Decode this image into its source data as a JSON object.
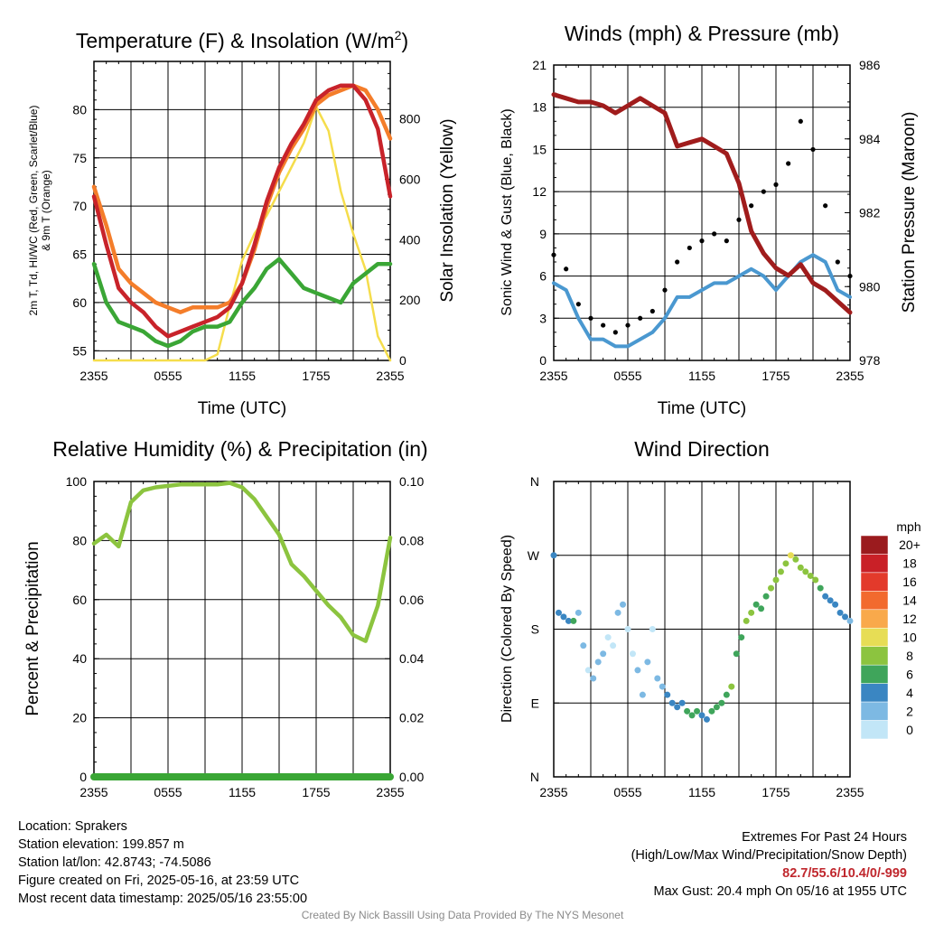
{
  "chart_data": [
    {
      "type": "line",
      "title": "Temperature (F) & Insolation (W/m²)",
      "title_text": "Temperature (F) & Insolation (W/m",
      "title_sup": "2",
      "title_end": ")",
      "xlabel": "Time (UTC)",
      "ylabel_line1": "2m T, Td, HI/WC (Red, Green, Scarlet/Blue)",
      "ylabel_line2": "& 9m T (Orange)",
      "y2label": "Solar Insolation (Yellow)",
      "x_ticks": [
        "2355",
        "0555",
        "1155",
        "1755",
        "2355"
      ],
      "y_ticks": [
        55,
        60,
        65,
        70,
        75,
        80
      ],
      "ylim": [
        54,
        85
      ],
      "y2_ticks": [
        0,
        200,
        400,
        600,
        800
      ],
      "y2lim": [
        0,
        990
      ],
      "series": [
        {
          "name": "2m T",
          "color": "#c8232a",
          "x": [
            0,
            1,
            2,
            3,
            4,
            5,
            6,
            7,
            8,
            9,
            10,
            11,
            12,
            13,
            14,
            15,
            16,
            17,
            18,
            19,
            20,
            21,
            22,
            23,
            24
          ],
          "values": [
            71,
            66,
            61.5,
            60,
            59,
            57.5,
            56.5,
            57,
            57.5,
            58,
            58.5,
            59.5,
            62,
            66,
            70.5,
            74,
            76.5,
            78.5,
            81,
            82,
            82.5,
            82.5,
            81,
            78,
            71
          ]
        },
        {
          "name": "Td",
          "color": "#3aa635",
          "x": [
            0,
            1,
            2,
            3,
            4,
            5,
            6,
            7,
            8,
            9,
            10,
            11,
            12,
            13,
            14,
            15,
            16,
            17,
            18,
            19,
            20,
            21,
            22,
            23,
            24
          ],
          "values": [
            64,
            60,
            58,
            57.5,
            57,
            56,
            55.5,
            56,
            57,
            57.5,
            57.5,
            58,
            60,
            61.5,
            63.5,
            64.5,
            63,
            61.5,
            61,
            60.5,
            60,
            62,
            63,
            64,
            64
          ]
        },
        {
          "name": "9m T",
          "color": "#f47d2a",
          "x": [
            0,
            1,
            2,
            3,
            4,
            5,
            6,
            7,
            8,
            9,
            10,
            11,
            12,
            13,
            14,
            15,
            16,
            17,
            18,
            19,
            20,
            21,
            22,
            23,
            24
          ],
          "values": [
            72,
            68,
            63.5,
            62,
            61,
            60,
            59.5,
            59,
            59.5,
            59.5,
            59.5,
            60,
            62,
            65.5,
            70,
            73.5,
            76,
            78,
            80.5,
            81.5,
            82,
            82.5,
            82,
            80,
            77
          ]
        },
        {
          "name": "Solar Insolation",
          "axis": "y2",
          "color": "#f5dd4c",
          "x": [
            0,
            1,
            2,
            3,
            4,
            5,
            6,
            7,
            8,
            9,
            10,
            11,
            12,
            13,
            14,
            15,
            16,
            17,
            18,
            19,
            20,
            21,
            22,
            23,
            24
          ],
          "values": [
            0,
            0,
            0,
            0,
            0,
            0,
            0,
            0,
            0,
            0,
            20,
            180,
            330,
            420,
            480,
            560,
            640,
            720,
            840,
            760,
            560,
            420,
            300,
            80,
            0
          ]
        }
      ]
    },
    {
      "type": "line",
      "title": "Winds (mph) & Pressure (mb)",
      "xlabel": "Time (UTC)",
      "ylabel": "Sonic Wind & Gust (Blue, Black)",
      "y2label": "Station Pressure (Maroon)",
      "x_ticks": [
        "2355",
        "0555",
        "1155",
        "1755",
        "2355"
      ],
      "y_ticks": [
        0,
        3,
        6,
        9,
        12,
        15,
        18,
        21
      ],
      "ylim": [
        0,
        21
      ],
      "y2_ticks": [
        978,
        980,
        982,
        984,
        986
      ],
      "y2lim": [
        978,
        986
      ],
      "series": [
        {
          "name": "Sonic Wind",
          "color": "#4a98d0",
          "x": [
            0,
            1,
            2,
            3,
            4,
            5,
            6,
            7,
            8,
            9,
            10,
            11,
            12,
            13,
            14,
            15,
            16,
            17,
            18,
            19,
            20,
            21,
            22,
            23,
            24
          ],
          "values": [
            5.5,
            5,
            3,
            1.5,
            1.5,
            1,
            1,
            1.5,
            2,
            3,
            4.5,
            4.5,
            5,
            5.5,
            5.5,
            6,
            6.5,
            6,
            5,
            6,
            7,
            7.5,
            7,
            5,
            4.5
          ]
        },
        {
          "name": "Gust",
          "color": "#000000",
          "x": [
            0,
            1,
            2,
            3,
            4,
            5,
            6,
            7,
            8,
            9,
            10,
            11,
            12,
            13,
            14,
            15,
            16,
            17,
            18,
            19,
            20,
            21,
            22,
            23,
            24
          ],
          "values": [
            7.5,
            6.5,
            4,
            3,
            2.5,
            2,
            2.5,
            3,
            3.5,
            5,
            7,
            8,
            8.5,
            9,
            8.5,
            10,
            11,
            12,
            12.5,
            14,
            17,
            15,
            11,
            7,
            6
          ]
        },
        {
          "name": "Station Pressure",
          "axis": "y2",
          "color": "#a01c1c",
          "x": [
            0,
            1,
            2,
            3,
            4,
            5,
            6,
            7,
            8,
            9,
            10,
            11,
            12,
            13,
            14,
            15,
            16,
            17,
            18,
            19,
            20,
            21,
            22,
            23,
            24
          ],
          "values": [
            985.2,
            985.1,
            985,
            985,
            984.9,
            984.7,
            984.9,
            985.1,
            984.9,
            984.7,
            983.8,
            983.9,
            984,
            983.8,
            983.6,
            982.8,
            981.5,
            980.9,
            980.5,
            980.3,
            980.6,
            980.1,
            979.9,
            979.6,
            979.3
          ]
        }
      ]
    },
    {
      "type": "line",
      "title": "Relative Humidity (%) & Precipitation (in)",
      "ylabel": "Percent & Precipitation",
      "x_ticks": [
        "2355",
        "0555",
        "1155",
        "1755",
        "2355"
      ],
      "y_ticks": [
        0,
        20,
        40,
        60,
        80,
        100
      ],
      "ylim": [
        0,
        100
      ],
      "y2_ticks": [
        "0.00",
        "0.02",
        "0.04",
        "0.06",
        "0.08",
        "0.10"
      ],
      "y2lim": [
        0,
        0.1
      ],
      "series": [
        {
          "name": "Relative Humidity",
          "color": "#8cc43f",
          "x": [
            0,
            1,
            2,
            3,
            4,
            5,
            6,
            7,
            8,
            9,
            10,
            11,
            12,
            13,
            14,
            15,
            16,
            17,
            18,
            19,
            20,
            21,
            22,
            23,
            24
          ],
          "values": [
            79,
            82,
            78,
            93,
            97,
            98,
            98.5,
            99,
            99,
            99,
            99,
            99.5,
            98,
            94,
            88,
            82,
            72,
            68,
            63,
            58,
            54,
            48,
            46,
            58,
            81
          ]
        },
        {
          "name": "Precipitation",
          "axis": "y2",
          "color": "#3aa635",
          "x": [
            0,
            24
          ],
          "values": [
            0,
            0
          ]
        }
      ]
    },
    {
      "type": "scatter",
      "title": "Wind Direction",
      "ylabel": "Direction (Colored By Speed)",
      "x_ticks": [
        "2355",
        "0555",
        "1155",
        "1755",
        "2355"
      ],
      "y_ticks": [
        "N",
        "E",
        "S",
        "W",
        "N"
      ],
      "ylim": [
        0,
        360
      ],
      "colorbar": {
        "title": "mph",
        "labels": [
          "20+",
          "18",
          "16",
          "14",
          "12",
          "10",
          "8",
          "6",
          "4",
          "2",
          "0"
        ],
        "colors": [
          "#9b1b1e",
          "#c92027",
          "#e33a2b",
          "#f26a2e",
          "#f9a94b",
          "#e7dd55",
          "#8cc43f",
          "#3fa55b",
          "#3a86c2",
          "#7db9e3",
          "#c2e6f7"
        ]
      },
      "points": {
        "x": [
          0,
          0.4,
          0.8,
          1.2,
          1.6,
          2,
          2.4,
          2.8,
          3.2,
          3.6,
          4,
          4.4,
          4.8,
          5.2,
          5.6,
          6,
          6.4,
          6.8,
          7.2,
          7.6,
          8,
          8.4,
          8.8,
          9.2,
          9.6,
          10,
          10.4,
          10.8,
          11.2,
          11.6,
          12,
          12.4,
          12.8,
          13.2,
          13.6,
          14,
          14.4,
          14.8,
          15.2,
          15.6,
          16,
          16.4,
          16.8,
          17.2,
          17.6,
          18,
          18.4,
          18.8,
          19.2,
          19.6,
          20,
          20.4,
          20.8,
          21.2,
          21.6,
          22,
          22.4,
          22.8,
          23.2,
          23.6,
          24
        ],
        "y": [
          270,
          200,
          195,
          190,
          190,
          200,
          160,
          130,
          120,
          140,
          150,
          170,
          160,
          200,
          210,
          180,
          150,
          130,
          100,
          140,
          180,
          120,
          110,
          100,
          90,
          85,
          90,
          80,
          75,
          80,
          75,
          70,
          80,
          85,
          90,
          100,
          110,
          150,
          170,
          190,
          200,
          210,
          205,
          220,
          230,
          240,
          250,
          260,
          270,
          265,
          255,
          250,
          245,
          240,
          230,
          220,
          215,
          210,
          200,
          195,
          190
        ],
        "speed": [
          5,
          4,
          4,
          5,
          6,
          3,
          2,
          1,
          2,
          3,
          2,
          1,
          1,
          2,
          3,
          1,
          1,
          2,
          2,
          2,
          1,
          3,
          3,
          4,
          4,
          5,
          5,
          6,
          7,
          6,
          5,
          5,
          6,
          7,
          6,
          6,
          8,
          7,
          7,
          8,
          8,
          7,
          6,
          7,
          8,
          8,
          9,
          9,
          10,
          9,
          8,
          8,
          9,
          8,
          7,
          5,
          5,
          4,
          4,
          4,
          3
        ]
      }
    }
  ],
  "info": {
    "location": "Location: Sprakers",
    "elevation": "Station elevation: 199.857 m",
    "latlon": "Station lat/lon: 42.8743; -74.5086",
    "created": "Figure created on Fri, 2025-05-16, at 23:59 UTC",
    "recent": "Most recent data timestamp: 2025/05/16 23:55:00"
  },
  "extremes": {
    "title": "Extremes For Past 24 Hours",
    "subtitle": "(High/Low/Max Wind/Precipitation/Snow Depth)",
    "values": "82.7/55.6/10.4/0/-999",
    "gust": "Max Gust: 20.4 mph On 05/16 at 1955 UTC"
  },
  "credit": "Created By Nick Bassill Using Data Provided By The NYS Mesonet"
}
